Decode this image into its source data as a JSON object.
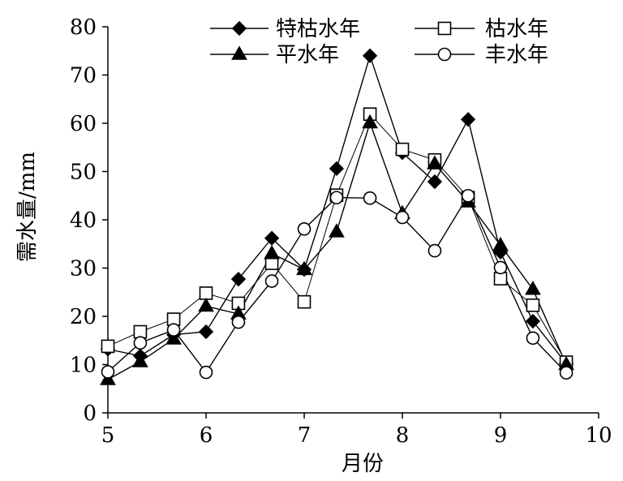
{
  "chart_data": {
    "type": "line",
    "xlabel": "月份",
    "ylabel": "需水量/mm",
    "xlim": [
      5,
      10
    ],
    "ylim": [
      0,
      80
    ],
    "xticks": [
      5,
      6,
      7,
      8,
      9,
      10
    ],
    "yticks": [
      0,
      10,
      20,
      30,
      40,
      50,
      60,
      70,
      80
    ],
    "x": [
      5.0,
      5.33,
      5.67,
      6.0,
      6.33,
      6.67,
      7.0,
      7.33,
      7.67,
      8.0,
      8.33,
      8.67,
      9.0,
      9.33,
      9.67
    ],
    "grid": false,
    "legend_position": "top",
    "series": [
      {
        "name": "特枯水年",
        "marker": "diamond",
        "color": "#000000",
        "values": [
          13.2,
          11.8,
          16.2,
          16.8,
          27.7,
          36.2,
          29.7,
          50.6,
          74.0,
          53.9,
          47.9,
          60.8,
          33.3,
          19.0,
          10.2
        ]
      },
      {
        "name": "枯水年",
        "marker": "square",
        "color": "#000000",
        "values": [
          13.8,
          16.8,
          19.4,
          24.8,
          22.7,
          31.0,
          23.0,
          45.1,
          61.9,
          54.6,
          52.4,
          44.6,
          27.8,
          22.3,
          10.5
        ]
      },
      {
        "name": "平水年",
        "marker": "triangle",
        "color": "#000000",
        "values": [
          6.9,
          10.6,
          15.3,
          22.1,
          20.5,
          33.0,
          29.7,
          37.5,
          60.1,
          41.3,
          51.6,
          43.7,
          34.7,
          25.6,
          10.0
        ]
      },
      {
        "name": "丰水年",
        "marker": "circle",
        "color": "#000000",
        "values": [
          8.5,
          14.5,
          17.2,
          8.4,
          18.8,
          27.3,
          38.1,
          44.6,
          44.5,
          40.5,
          33.6,
          45.0,
          30.1,
          15.5,
          8.3
        ]
      }
    ]
  }
}
